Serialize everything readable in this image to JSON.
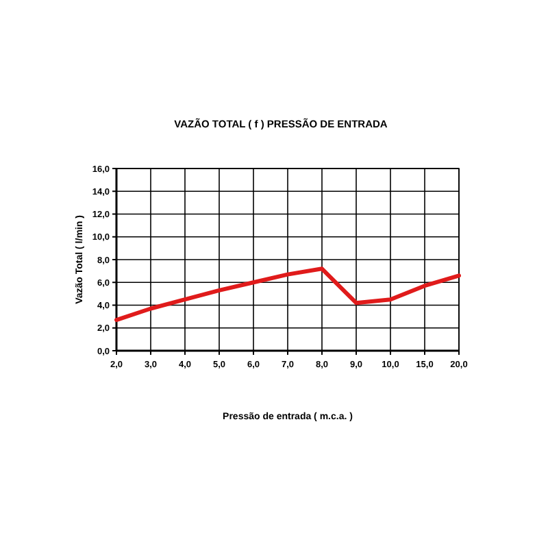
{
  "chart_data": {
    "type": "line",
    "title": "VAZÃO TOTAL ( f ) PRESSÃO DE ENTRADA",
    "xlabel": "Pressão de entrada ( m.c.a. )",
    "ylabel": "Vazão Total ( l/min )",
    "categories": [
      "2,0",
      "3,0",
      "4,0",
      "5,0",
      "6,0",
      "7,0",
      "8,0",
      "9,0",
      "10,0",
      "15,0",
      "20,0"
    ],
    "series": [
      {
        "color": "#e01b1b",
        "values": [
          2.7,
          3.7,
          4.5,
          5.3,
          6.0,
          6.7,
          7.2,
          4.2,
          4.5,
          5.7,
          6.6
        ]
      }
    ],
    "ylim": [
      0,
      16
    ],
    "yticks": [
      {
        "value": 0,
        "label": "0,0"
      },
      {
        "value": 2,
        "label": "2,0"
      },
      {
        "value": 4,
        "label": "4,0"
      },
      {
        "value": 6,
        "label": "6,0"
      },
      {
        "value": 8,
        "label": "8,0"
      },
      {
        "value": 10,
        "label": "10,0"
      },
      {
        "value": 12,
        "label": "12,0"
      },
      {
        "value": 14,
        "label": "14,0"
      },
      {
        "value": 16,
        "label": "16,0"
      }
    ],
    "grid": true,
    "marker": "none",
    "line_style": "solid"
  }
}
